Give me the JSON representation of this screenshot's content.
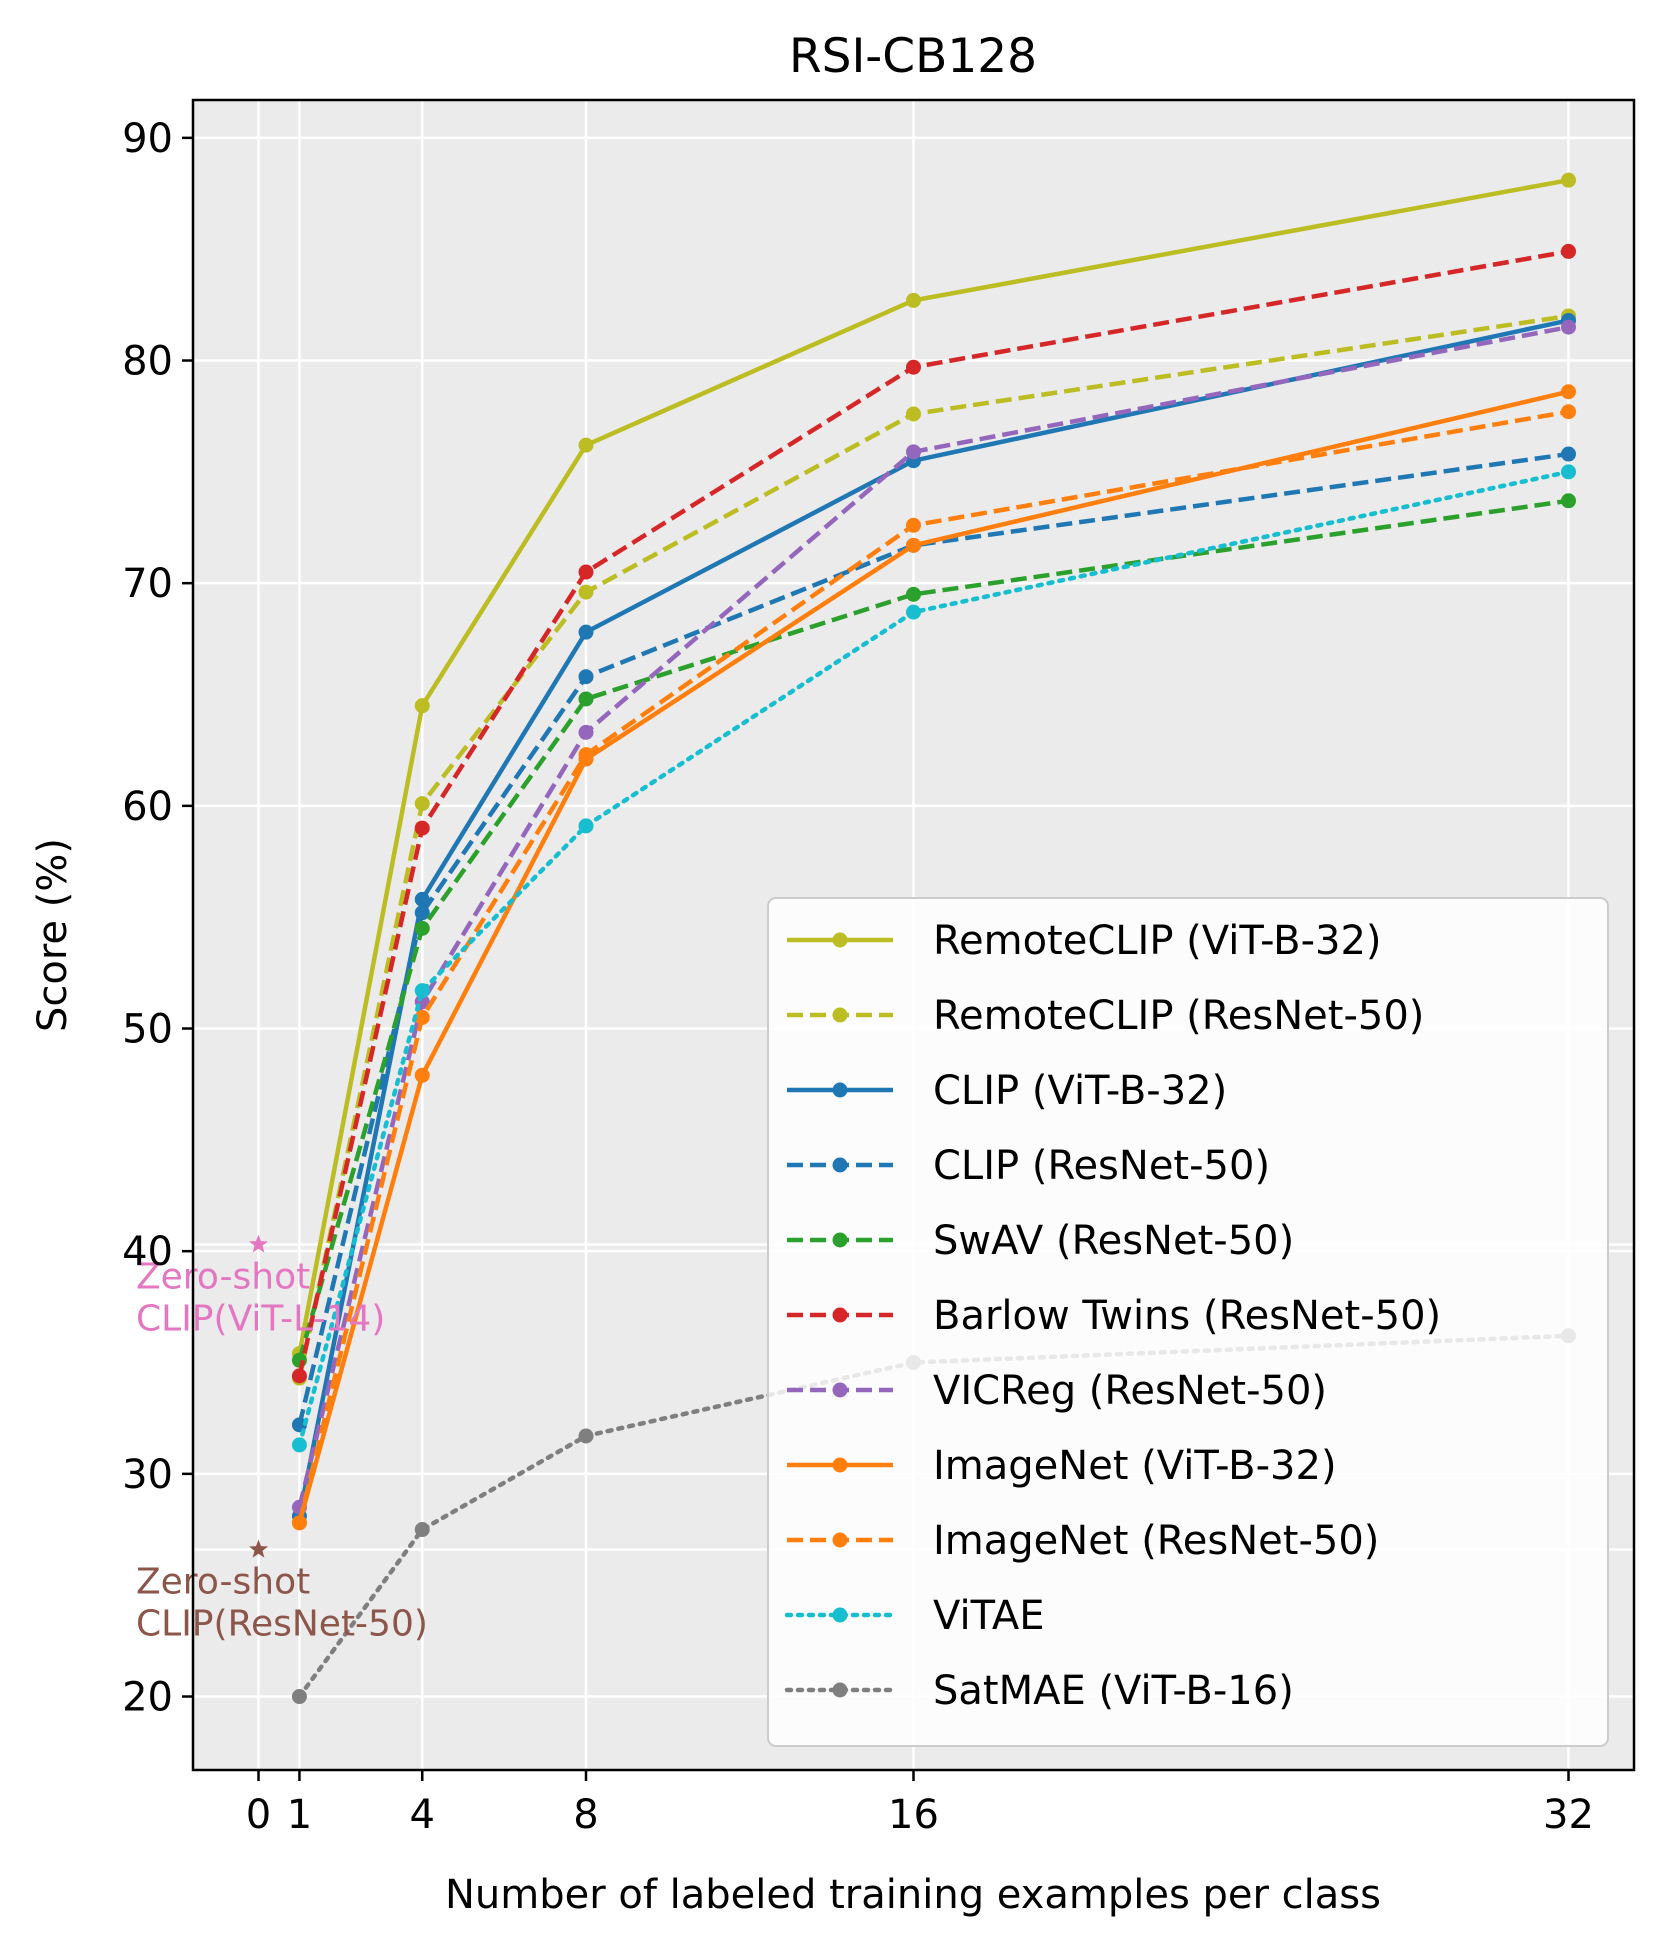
{
  "chart_data": {
    "type": "line",
    "title": "RSI-CB128",
    "xlabel": "Number of labeled training examples per class",
    "ylabel": "Score (%)",
    "x": [
      1,
      4,
      8,
      16,
      32
    ],
    "xticks": [
      0,
      1,
      4,
      8,
      16,
      32
    ],
    "yticks": [
      20,
      30,
      40,
      50,
      60,
      70,
      80,
      90
    ],
    "xlim": [
      -1.6,
      33.6
    ],
    "ylim": [
      16.7,
      91.7
    ],
    "grid": true,
    "legend_position": "lower-right",
    "series": [
      {
        "name": "RemoteCLIP (ViT-B-32)",
        "color": "#bcbd22",
        "dash": "solid",
        "values": [
          35.4,
          64.5,
          76.2,
          82.7,
          88.1
        ]
      },
      {
        "name": "RemoteCLIP (ResNet-50)",
        "color": "#bcbd22",
        "dash": "dashed",
        "values": [
          34.3,
          60.1,
          69.6,
          77.6,
          82.0
        ]
      },
      {
        "name": "CLIP (ViT-B-32)",
        "color": "#1f77b4",
        "dash": "solid",
        "values": [
          28.1,
          55.8,
          67.8,
          75.5,
          81.8
        ]
      },
      {
        "name": "CLIP (ResNet-50)",
        "color": "#1f77b4",
        "dash": "dashed",
        "values": [
          32.2,
          55.2,
          65.8,
          71.7,
          75.8
        ]
      },
      {
        "name": "SwAV (ResNet-50)",
        "color": "#2ca02c",
        "dash": "dashed",
        "values": [
          35.1,
          54.5,
          64.8,
          69.5,
          73.7
        ]
      },
      {
        "name": "Barlow Twins (ResNet-50)",
        "color": "#d62728",
        "dash": "dashed",
        "values": [
          34.4,
          59.0,
          70.5,
          79.7,
          84.9
        ]
      },
      {
        "name": "VICReg (ResNet-50)",
        "color": "#9467bd",
        "dash": "dashed",
        "values": [
          28.5,
          51.2,
          63.3,
          75.9,
          81.5
        ]
      },
      {
        "name": "ImageNet (ViT-B-32)",
        "color": "#ff7f0e",
        "dash": "solid",
        "values": [
          27.8,
          47.9,
          62.1,
          71.7,
          78.6
        ]
      },
      {
        "name": "ImageNet (ResNet-50)",
        "color": "#ff7f0e",
        "dash": "dashed",
        "values": [
          27.8,
          50.5,
          62.3,
          72.6,
          77.7
        ]
      },
      {
        "name": "ViTAE",
        "color": "#17becf",
        "dash": "dotted",
        "values": [
          31.3,
          51.7,
          59.1,
          68.7,
          75.0
        ]
      },
      {
        "name": "SatMAE (ViT-B-16)",
        "color": "#7f7f7f",
        "dash": "dotted",
        "values": [
          20.0,
          27.5,
          31.7,
          35.0,
          36.2
        ]
      }
    ],
    "annotations": [
      {
        "text_line1": "Zero-shot",
        "text_line2": "CLIP(ViT-L-14)",
        "x": 0,
        "y": 40.3,
        "color": "#e377c2"
      },
      {
        "text_line1": "Zero-shot",
        "text_line2": "CLIP(ResNet-50)",
        "x": 0,
        "y": 26.6,
        "color": "#8c564b"
      }
    ]
  }
}
